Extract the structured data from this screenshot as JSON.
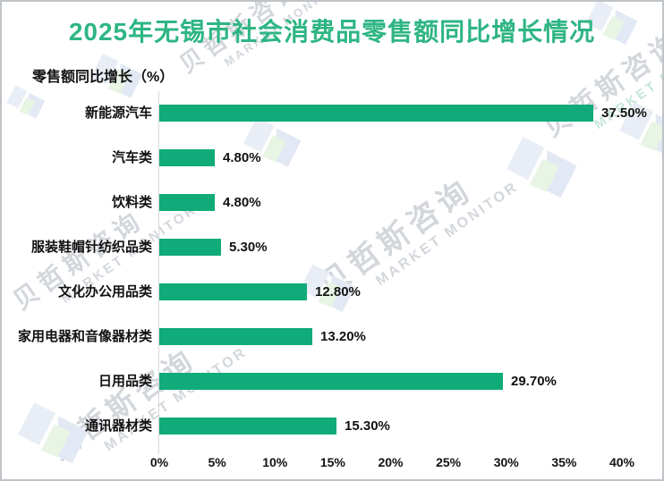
{
  "page": {
    "title": "2025年无锡市社会消费品零售额同比增长情况",
    "y_axis_label": "零售额同比增长（%）"
  },
  "chart_data": {
    "type": "bar",
    "orientation": "horizontal",
    "title": "2025年无锡市社会消费品零售额同比增长情况",
    "ylabel": "零售额同比增长（%）",
    "xlabel": "",
    "categories": [
      "新能源汽车",
      "汽车类",
      "饮料类",
      "服装鞋帽针纺织品类",
      "文化办公用品类",
      "家用电器和音像器材类",
      "日用品类",
      "通讯器材类"
    ],
    "values": [
      37.5,
      4.8,
      4.8,
      5.3,
      12.8,
      13.2,
      29.7,
      15.3
    ],
    "value_labels": [
      "37.50%",
      "4.80%",
      "4.80%",
      "5.30%",
      "12.80%",
      "13.20%",
      "29.70%",
      "15.30%"
    ],
    "xlim": [
      0,
      40
    ],
    "x_ticks": [
      "0%",
      "5%",
      "10%",
      "15%",
      "20%",
      "25%",
      "30%",
      "35%",
      "40%"
    ],
    "grid": false,
    "legend": false,
    "bar_color": "#10ab79"
  },
  "watermark": {
    "brand_cn": "贝哲斯咨询",
    "brand_en": "MARKET MONITOR"
  },
  "colors": {
    "bar": "#10ab79",
    "title": "#2eb584",
    "text": "#111111",
    "axis_line": "#d8d8d8",
    "frame": "#bfc3c8",
    "watermark_text": "#d3d7dc",
    "watermark_text_green": "#c7e6d8",
    "watermark_logo_blue": "#e9eef6",
    "watermark_logo_blue2": "#e2e9f4",
    "watermark_logo_green": "#e8f4e4"
  }
}
